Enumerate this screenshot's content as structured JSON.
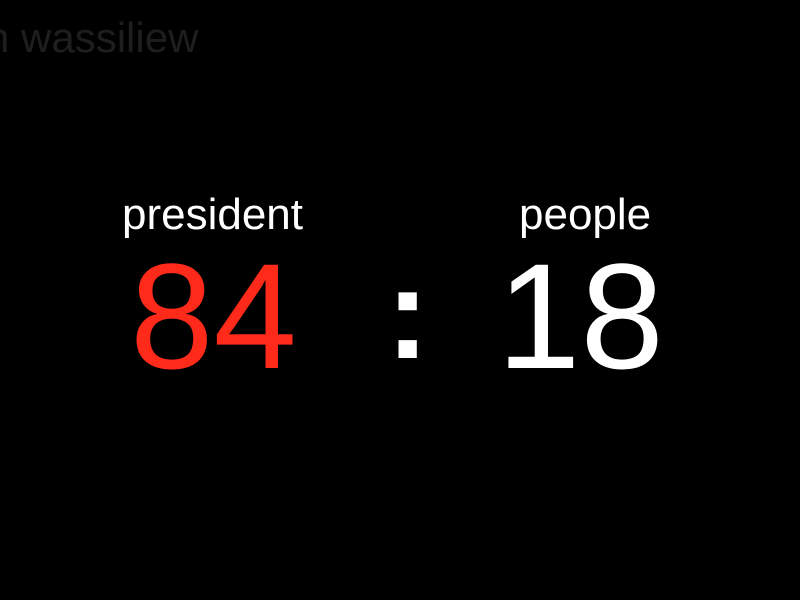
{
  "watermark": "n wassiliew",
  "left": {
    "label": "president",
    "score": "84",
    "color": "#ff2a1a"
  },
  "separator": ":",
  "right": {
    "label": "people",
    "score": "18",
    "color": "#ffffff"
  }
}
